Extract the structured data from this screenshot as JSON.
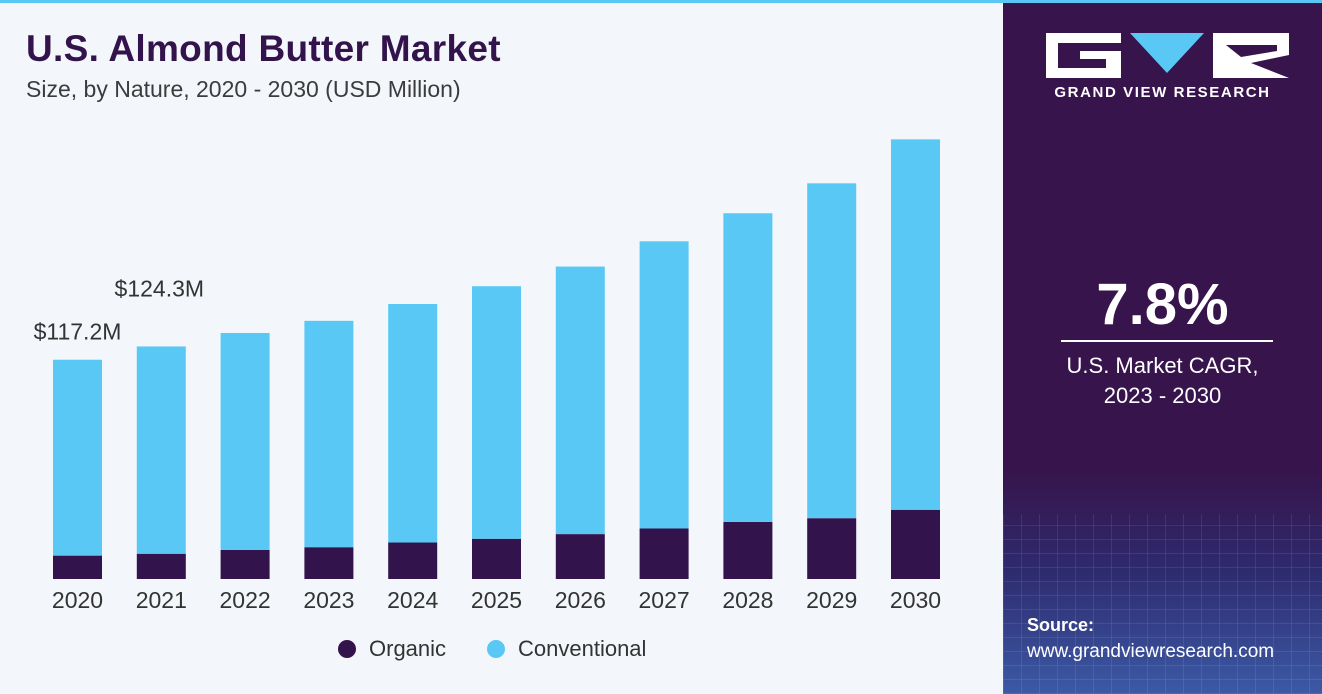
{
  "header": {
    "title": "U.S. Almond Butter Market",
    "subtitle": "Size, by Nature, 2020 - 2030 (USD Million)"
  },
  "brand": {
    "logo_text": "GRAND VIEW RESEARCH",
    "cagr_value": "7.8%",
    "cagr_label_line1": "U.S. Market CAGR,",
    "cagr_label_line2": "2023 - 2030",
    "source_label": "Source:",
    "source_url": "www.grandviewresearch.com"
  },
  "colors": {
    "organic": "#33134b",
    "conventional": "#5ac8f5",
    "text": "#333333"
  },
  "chart_data": {
    "type": "bar",
    "stacked": true,
    "title": "U.S. Almond Butter Market",
    "subtitle": "Size, by Nature, 2020 - 2030 (USD Million)",
    "xlabel": "",
    "ylabel": "USD Million",
    "ylim": [
      0,
      240
    ],
    "grid": false,
    "legend_position": "bottom-center",
    "categories": [
      "2020",
      "2021",
      "2022",
      "2023",
      "2024",
      "2025",
      "2026",
      "2027",
      "2028",
      "2029",
      "2030"
    ],
    "series": [
      {
        "name": "Organic",
        "values": [
          12.5,
          13.5,
          15.5,
          17,
          19.5,
          21.5,
          24,
          27,
          30.5,
          32.5,
          37
        ]
      },
      {
        "name": "Conventional",
        "values": [
          104.7,
          110.8,
          116,
          121,
          127.5,
          135,
          143,
          153.5,
          165,
          179,
          198
        ]
      }
    ],
    "annotations": [
      {
        "category": "2020",
        "text": "$117.2M"
      },
      {
        "category": "2021",
        "text": "$124.3M"
      }
    ]
  }
}
